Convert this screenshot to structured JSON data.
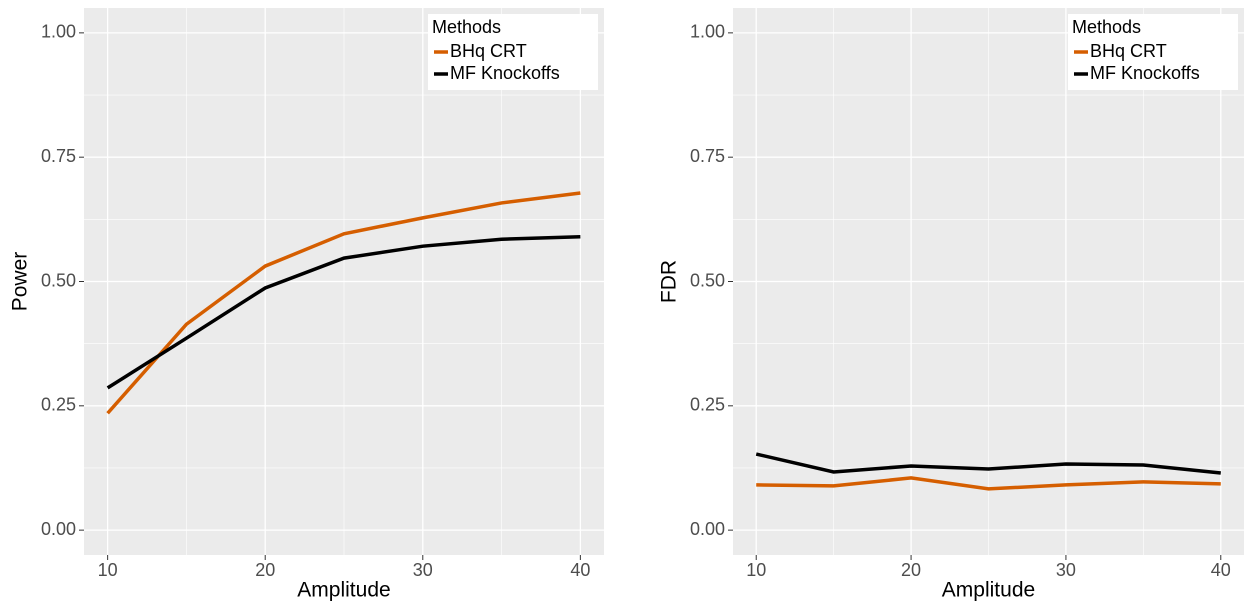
{
  "chart_data": [
    {
      "type": "line",
      "x_label": "Amplitude",
      "y_label": "Power",
      "x": [
        10,
        15,
        20,
        25,
        30,
        35,
        40
      ],
      "series": [
        {
          "name": "BHq CRT",
          "color": "#d55e00",
          "values": [
            0.235,
            0.414,
            0.531,
            0.596,
            0.628,
            0.658,
            0.678
          ]
        },
        {
          "name": "MF Knockoffs",
          "color": "#000000",
          "values": [
            0.286,
            0.386,
            0.487,
            0.547,
            0.571,
            0.585,
            0.59
          ]
        }
      ],
      "legend_title": "Methods",
      "legend": "top-right",
      "grid": true,
      "xlim": [
        8.5,
        41.5
      ],
      "xticks": [
        10,
        20,
        30,
        40
      ],
      "ylim": [
        -0.05,
        1.05
      ],
      "yticks": [
        {
          "value": 0,
          "label": "0.00"
        },
        {
          "value": 0.25,
          "label": "0.25"
        },
        {
          "value": 0.5,
          "label": "0.50"
        },
        {
          "value": 0.75,
          "label": "0.75"
        },
        {
          "value": 1,
          "label": "1.00"
        }
      ]
    },
    {
      "type": "line",
      "x_label": "Amplitude",
      "y_label": "FDR",
      "x": [
        10,
        15,
        20,
        25,
        30,
        35,
        40
      ],
      "series": [
        {
          "name": "BHq CRT",
          "color": "#d55e00",
          "values": [
            0.091,
            0.089,
            0.105,
            0.083,
            0.091,
            0.097,
            0.093
          ]
        },
        {
          "name": "MF Knockoffs",
          "color": "#000000",
          "values": [
            0.153,
            0.117,
            0.129,
            0.123,
            0.133,
            0.131,
            0.115
          ]
        }
      ],
      "legend_title": "Methods",
      "legend": "top-right",
      "grid": true,
      "xlim": [
        8.5,
        41.5
      ],
      "xticks": [
        10,
        20,
        30,
        40
      ],
      "ylim": [
        -0.05,
        1.05
      ],
      "yticks": [
        {
          "value": 0,
          "label": "0.00"
        },
        {
          "value": 0.25,
          "label": "0.25"
        },
        {
          "value": 0.5,
          "label": "0.50"
        },
        {
          "value": 0.75,
          "label": "0.75"
        },
        {
          "value": 1,
          "label": "1.00"
        }
      ]
    }
  ]
}
